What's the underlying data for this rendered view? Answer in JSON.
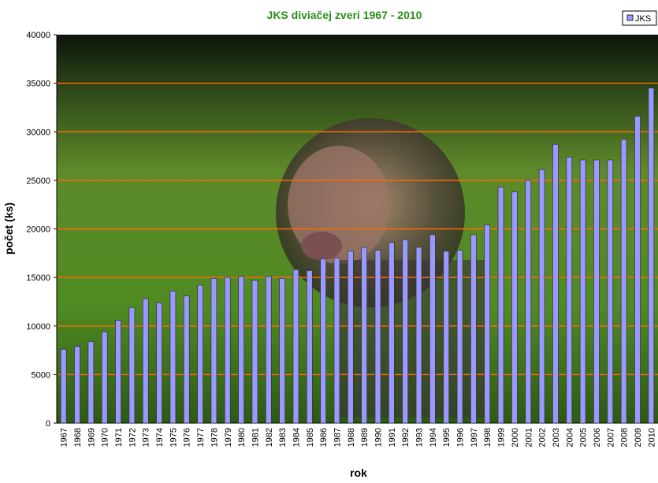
{
  "chart_data": {
    "type": "bar",
    "title": "JKS diviačej zveri 1967 - 2010",
    "x_label": "rok",
    "y_label": "počet (ks)",
    "categories": [
      "1967",
      "1968",
      "1969",
      "1970",
      "1971",
      "1972",
      "1973",
      "1974",
      "1975",
      "1976",
      "1977",
      "1978",
      "1979",
      "1980",
      "1981",
      "1982",
      "1983",
      "1984",
      "1985",
      "1986",
      "1987",
      "1988",
      "1989",
      "1990",
      "1991",
      "1992",
      "1993",
      "1994",
      "1995",
      "1996",
      "1997",
      "1998",
      "1999",
      "2000",
      "2001",
      "2002",
      "2003",
      "2004",
      "2005",
      "2006",
      "2007",
      "2008",
      "2009",
      "2010"
    ],
    "series": [
      {
        "name": "JKS",
        "color": "#9999ff",
        "values": [
          7600,
          7900,
          8400,
          9400,
          10600,
          11900,
          12800,
          12400,
          13600,
          13100,
          14200,
          14900,
          15000,
          15100,
          14700,
          15100,
          14900,
          15800,
          15700,
          16900,
          17000,
          17700,
          18100,
          17800,
          18600,
          18900,
          18100,
          19400,
          17700,
          17800,
          19400,
          20400,
          24300,
          23800,
          25000,
          26100,
          28700,
          27400,
          27100,
          27100,
          27100,
          29200,
          31600,
          34500
        ]
      }
    ],
    "ylim": [
      0,
      40000
    ],
    "yticks": [
      0,
      5000,
      10000,
      15000,
      20000,
      25000,
      30000,
      35000,
      40000
    ],
    "grid": true,
    "grid_color": "#ff6a00",
    "legend": "top-right"
  }
}
